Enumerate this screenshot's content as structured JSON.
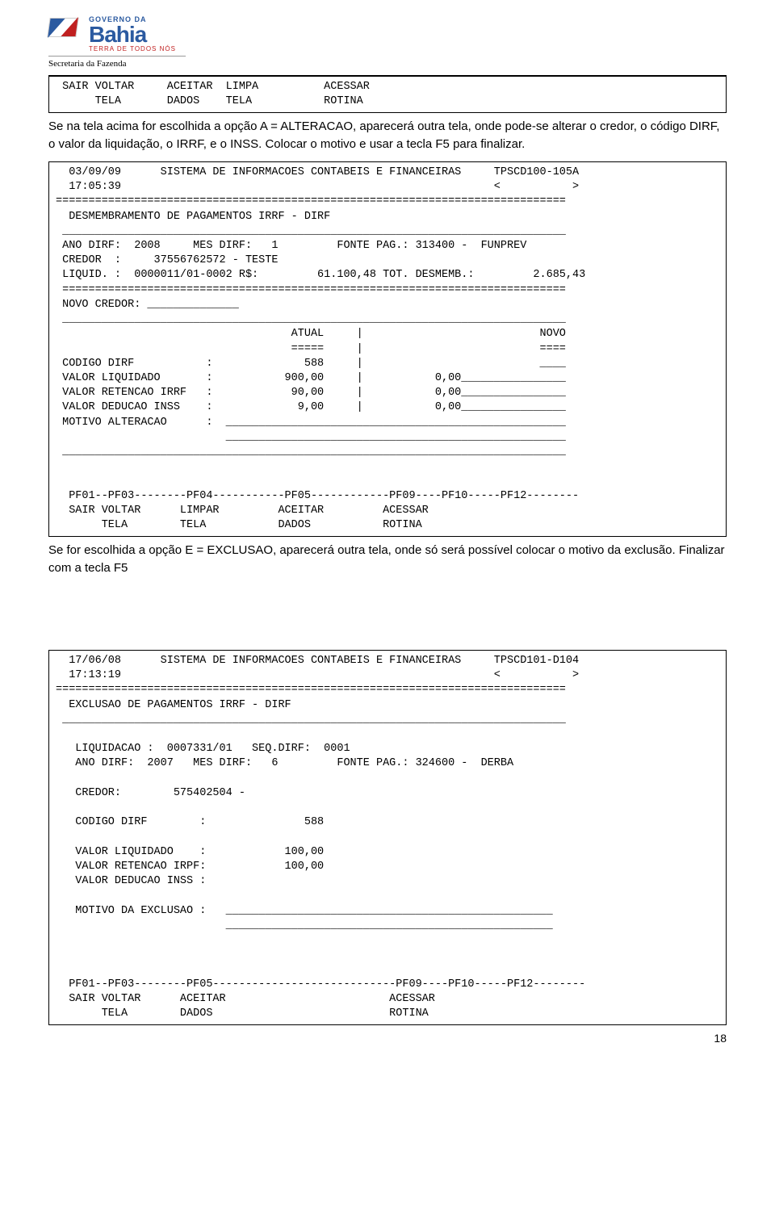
{
  "logo": {
    "gov": "GOVERNO DA",
    "state": "Bahia",
    "tagline": "TERRA DE TODOS NÓS",
    "dept": "Secretaria da Fazenda"
  },
  "box1": {
    "l1": " SAIR VOLTAR     ACEITAR  LIMPA          ACESSAR",
    "l2": "      TELA       DADOS    TELA           ROTINA"
  },
  "prose1": "Se na tela acima for escolhida a opção A = ALTERACAO, aparecerá outra tela, onde pode-se alterar o credor, o código DIRF, o valor da liquidação, o IRRF, e o INSS. Colocar o motivo e usar a tecla F5 para finalizar.",
  "box2": {
    "l1": "  03/09/09      SISTEMA DE INFORMACOES CONTABEIS E FINANCEIRAS     TPSCD100-105A",
    "l2": "  17:05:39                                                         <           >",
    "l3": "==============================================================================",
    "l4": "  DESMEMBRAMENTO DE PAGAMENTOS IRRF - DIRF",
    "l5": " _____________________________________________________________________________",
    "l6": " ANO DIRF:  2008     MES DIRF:   1         FONTE PAG.: 313400 -  FUNPREV",
    "l7": " CREDOR  :     37556762572 - TESTE",
    "l8": " LIQUID. :  0000011/01-0002 R$:         61.100,48 TOT. DESMEMB.:         2.685,43",
    "l9": " =============================================================================",
    "l10": " NOVO CREDOR: ______________",
    "l11": " _____________________________________________________________________________",
    "l12": "                                    ATUAL     |                           NOVO",
    "l13": "                                    =====     |                           ====",
    "l14": " CODIGO DIRF           :              588     |                           ____",
    "l15": " VALOR LIQUIDADO       :           900,00     |           0,00________________",
    "l16": " VALOR RETENCAO IRRF   :            90,00     |           0,00________________",
    "l17": " VALOR DEDUCAO INSS    :             9,00     |           0,00________________",
    "l18": " MOTIVO ALTERACAO      :  ____________________________________________________",
    "l19": "                          ____________________________________________________",
    "l20": " _____________________________________________________________________________",
    "l21": "",
    "l22": "",
    "l23": "  PF01--PF03--------PF04-----------PF05------------PF09----PF10-----PF12--------",
    "l24": "  SAIR VOLTAR      LIMPAR         ACEITAR         ACESSAR",
    "l25": "       TELA        TELA           DADOS           ROTINA"
  },
  "prose2": "Se for escolhida a opção E = EXCLUSAO, aparecerá outra tela, onde só será possível colocar o motivo da exclusão. Finalizar com a tecla F5",
  "box3": {
    "l1": "  17/06/08      SISTEMA DE INFORMACOES CONTABEIS E FINANCEIRAS     TPSCD101-D104",
    "l2": "  17:13:19                                                         <           >",
    "l3": "==============================================================================",
    "l4": "  EXCLUSAO DE PAGAMENTOS IRRF - DIRF",
    "l5": " _____________________________________________________________________________",
    "l6": "",
    "l7": "   LIQUIDACAO :  0007331/01   SEQ.DIRF:  0001",
    "l8": "   ANO DIRF:  2007   MES DIRF:   6         FONTE PAG.: 324600 -  DERBA",
    "l9": "",
    "l10": "   CREDOR:        575402504 -",
    "l11": "",
    "l12": "   CODIGO DIRF        :               588",
    "l13": "",
    "l14": "   VALOR LIQUIDADO    :            100,00",
    "l15": "   VALOR RETENCAO IRPF:            100,00",
    "l16": "   VALOR DEDUCAO INSS :",
    "l17": "",
    "l18": "   MOTIVO DA EXCLUSAO :   __________________________________________________",
    "l19": "                          __________________________________________________",
    "l20": "",
    "l21": "",
    "l22": "",
    "l23": "  PF01--PF03--------PF05----------------------------PF09----PF10-----PF12--------",
    "l24": "  SAIR VOLTAR      ACEITAR                         ACESSAR",
    "l25": "       TELA        DADOS                           ROTINA"
  },
  "pageNumber": "18"
}
